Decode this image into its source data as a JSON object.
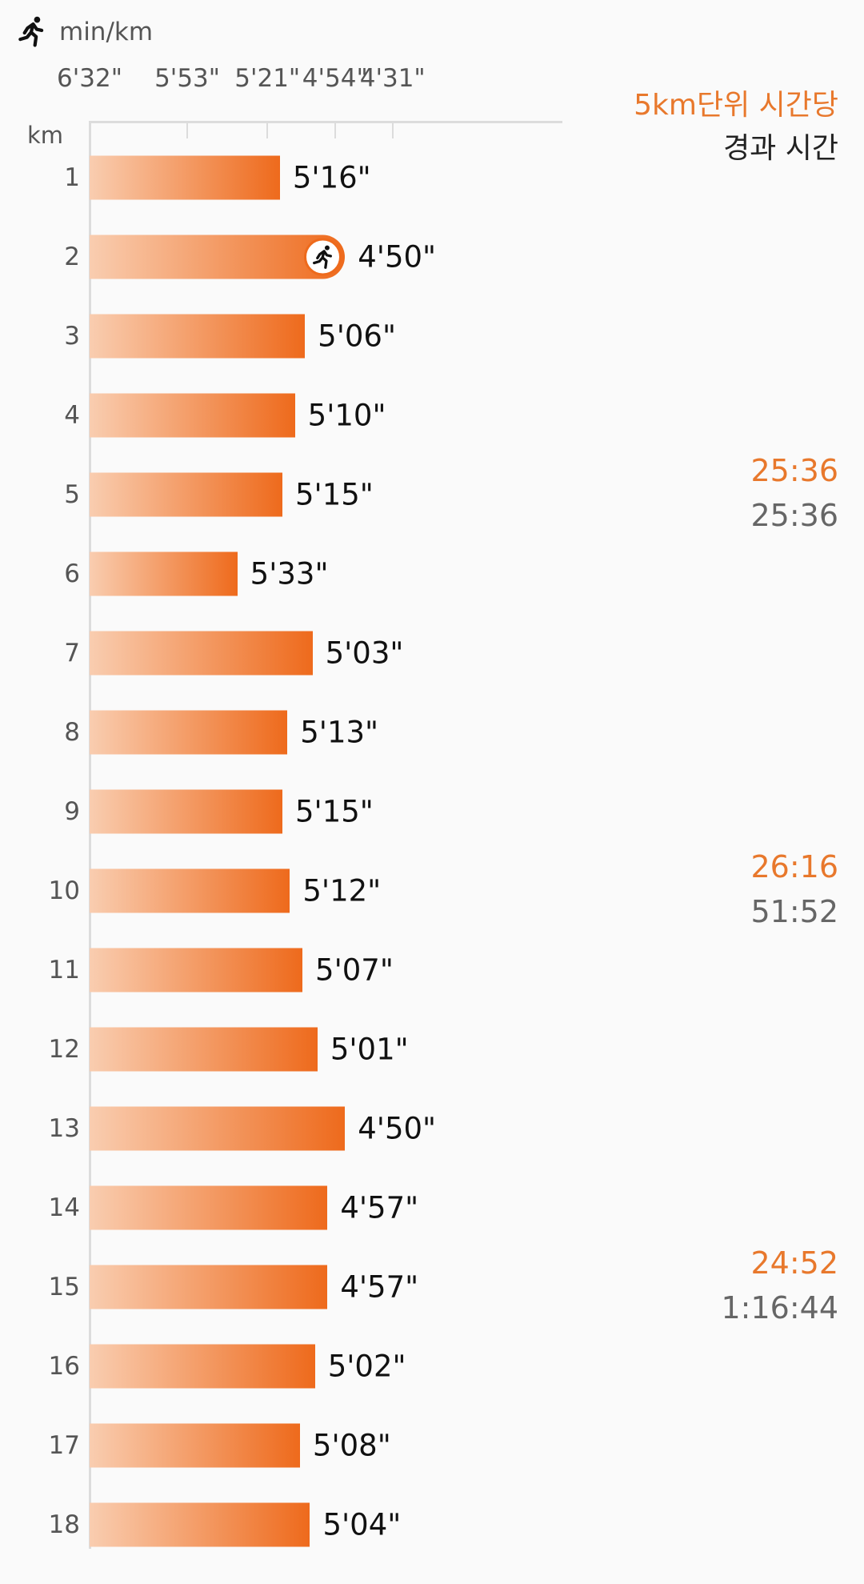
{
  "header": {
    "unit": "min/km",
    "icon": "runner-icon"
  },
  "legend": {
    "title": "5km단위 시간당",
    "subtitle": "경과 시간"
  },
  "colors": {
    "accent": "#ee6a1c",
    "bar_light": "#f9cdb0",
    "legend_accent": "#e8782c"
  },
  "chart_data": {
    "type": "bar",
    "orientation": "horizontal",
    "y_axis_label": "km",
    "x_axis_unit": "min/km",
    "x_ticks": [
      "6'32\"",
      "5'53\"",
      "5'21\"",
      "4'54\"",
      "4'31\""
    ],
    "x_tick_values_sec": [
      392,
      353,
      321,
      294,
      271
    ],
    "categories": [
      "1",
      "2",
      "3",
      "4",
      "5",
      "6",
      "7",
      "8",
      "9",
      "10",
      "11",
      "12",
      "13",
      "14",
      "15",
      "16",
      "17",
      "18"
    ],
    "values": [
      "5'16\"",
      "4'50\"",
      "5'06\"",
      "5'10\"",
      "5'15\"",
      "5'33\"",
      "5'03\"",
      "5'13\"",
      "5'15\"",
      "5'12\"",
      "5'07\"",
      "5'01\"",
      "4'50\"",
      "4'57\"",
      "4'57\"",
      "5'02\"",
      "5'08\"",
      "5'04\""
    ],
    "values_sec": [
      316,
      290,
      306,
      310,
      315,
      333,
      303,
      313,
      315,
      312,
      307,
      301,
      290,
      297,
      297,
      302,
      308,
      304
    ],
    "fastest_index": 1
  },
  "splits": [
    {
      "km": 5,
      "split": "25:36",
      "elapsed": "25:36"
    },
    {
      "km": 10,
      "split": "26:16",
      "elapsed": "51:52"
    },
    {
      "km": 15,
      "split": "24:52",
      "elapsed": "1:16:44"
    }
  ]
}
